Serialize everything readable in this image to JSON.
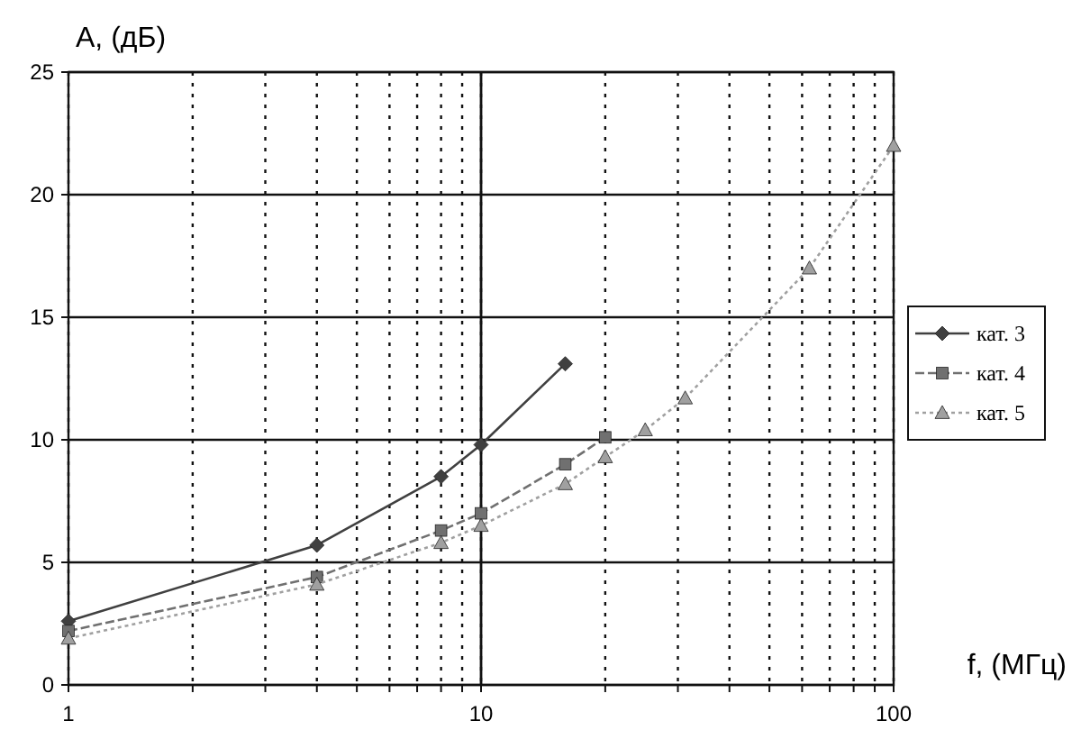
{
  "chart_data": {
    "type": "line",
    "ylabel": "A, (дБ)",
    "xlabel": "f, (МГц)",
    "log": "x",
    "xlim": [
      1,
      100
    ],
    "ylim": [
      0,
      25
    ],
    "yticks": [
      0,
      5,
      10,
      15,
      20,
      25
    ],
    "xticks": [
      1,
      {
        "value": 2,
        "label": null
      },
      {
        "value": 3,
        "label": null
      },
      {
        "value": 4,
        "label": null
      },
      {
        "value": 5,
        "label": null
      },
      {
        "value": 6,
        "label": null
      },
      {
        "value": 7,
        "label": null
      },
      {
        "value": 8,
        "label": null
      },
      {
        "value": 9,
        "label": null
      },
      10,
      {
        "value": 20,
        "label": null
      },
      {
        "value": 30,
        "label": null
      },
      {
        "value": 40,
        "label": null
      },
      {
        "value": 50,
        "label": null
      },
      {
        "value": 60,
        "label": null
      },
      {
        "value": 70,
        "label": null
      },
      {
        "value": 80,
        "label": null
      },
      {
        "value": 90,
        "label": null
      },
      100
    ],
    "grid": true,
    "legend": "right",
    "ref_lines": [
      {
        "axis": "x",
        "value": 10,
        "color": "#111111"
      }
    ],
    "series": [
      {
        "name": "кат. 3",
        "color": "#404040",
        "marker": "diamond",
        "line_style": "solid",
        "x": [
          1,
          4,
          8,
          10,
          16
        ],
        "values": [
          2.6,
          5.7,
          8.5,
          9.8,
          13.1
        ]
      },
      {
        "name": "кат. 4",
        "color": "#707070",
        "marker": "square",
        "line_style": "dashed",
        "x": [
          1,
          4,
          8,
          10,
          16,
          20
        ],
        "values": [
          2.2,
          4.4,
          6.3,
          7.0,
          9.0,
          10.1
        ]
      },
      {
        "name": "кат. 5",
        "color": "#a0a0a0",
        "marker": "triangle",
        "line_style": "dotted",
        "x": [
          1,
          4,
          8,
          10,
          16,
          20,
          25,
          31.25,
          62.5,
          100
        ],
        "values": [
          1.9,
          4.1,
          5.8,
          6.5,
          8.2,
          9.3,
          10.4,
          11.7,
          17.0,
          22.0
        ]
      }
    ]
  }
}
